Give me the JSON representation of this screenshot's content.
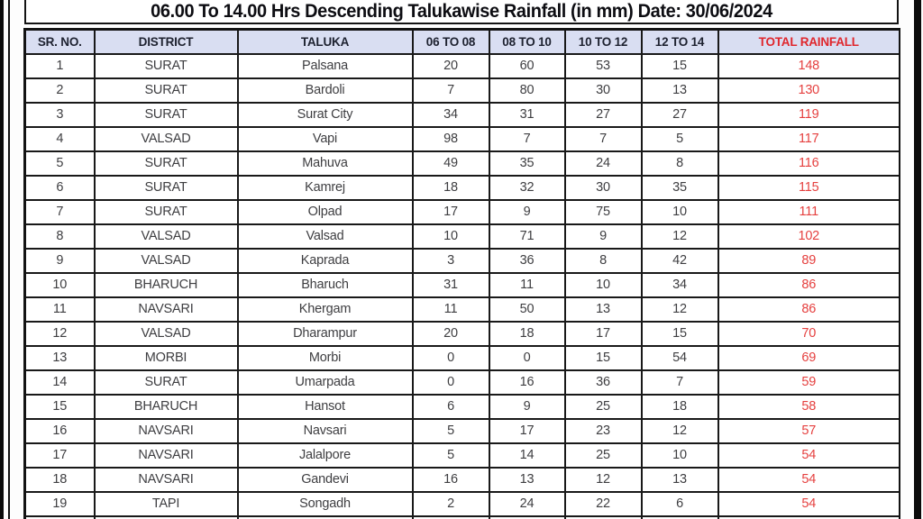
{
  "title": "06.00 To 14.00 Hrs Descending Talukawise Rainfall (in mm) Date: 30/06/2024",
  "table": {
    "columns": [
      "SR. NO.",
      "DISTRICT",
      "TALUKA",
      "06 TO 08",
      "08 TO 10",
      "10 TO 12",
      "12 TO 14",
      "TOTAL RAINFALL"
    ],
    "rows": [
      {
        "sr": "1",
        "district": "SURAT",
        "taluka": "Palsana",
        "h06_08": "20",
        "h08_10": "60",
        "h10_12": "53",
        "h12_14": "15",
        "total": "148"
      },
      {
        "sr": "2",
        "district": "SURAT",
        "taluka": "Bardoli",
        "h06_08": "7",
        "h08_10": "80",
        "h10_12": "30",
        "h12_14": "13",
        "total": "130"
      },
      {
        "sr": "3",
        "district": "SURAT",
        "taluka": "Surat City",
        "h06_08": "34",
        "h08_10": "31",
        "h10_12": "27",
        "h12_14": "27",
        "total": "119"
      },
      {
        "sr": "4",
        "district": "VALSAD",
        "taluka": "Vapi",
        "h06_08": "98",
        "h08_10": "7",
        "h10_12": "7",
        "h12_14": "5",
        "total": "117"
      },
      {
        "sr": "5",
        "district": "SURAT",
        "taluka": "Mahuva",
        "h06_08": "49",
        "h08_10": "35",
        "h10_12": "24",
        "h12_14": "8",
        "total": "116"
      },
      {
        "sr": "6",
        "district": "SURAT",
        "taluka": "Kamrej",
        "h06_08": "18",
        "h08_10": "32",
        "h10_12": "30",
        "h12_14": "35",
        "total": "115"
      },
      {
        "sr": "7",
        "district": "SURAT",
        "taluka": "Olpad",
        "h06_08": "17",
        "h08_10": "9",
        "h10_12": "75",
        "h12_14": "10",
        "total": "111"
      },
      {
        "sr": "8",
        "district": "VALSAD",
        "taluka": "Valsad",
        "h06_08": "10",
        "h08_10": "71",
        "h10_12": "9",
        "h12_14": "12",
        "total": "102"
      },
      {
        "sr": "9",
        "district": "VALSAD",
        "taluka": "Kaprada",
        "h06_08": "3",
        "h08_10": "36",
        "h10_12": "8",
        "h12_14": "42",
        "total": "89"
      },
      {
        "sr": "10",
        "district": "BHARUCH",
        "taluka": "Bharuch",
        "h06_08": "31",
        "h08_10": "11",
        "h10_12": "10",
        "h12_14": "34",
        "total": "86"
      },
      {
        "sr": "11",
        "district": "NAVSARI",
        "taluka": "Khergam",
        "h06_08": "11",
        "h08_10": "50",
        "h10_12": "13",
        "h12_14": "12",
        "total": "86"
      },
      {
        "sr": "12",
        "district": "VALSAD",
        "taluka": "Dharampur",
        "h06_08": "20",
        "h08_10": "18",
        "h10_12": "17",
        "h12_14": "15",
        "total": "70"
      },
      {
        "sr": "13",
        "district": "MORBI",
        "taluka": "Morbi",
        "h06_08": "0",
        "h08_10": "0",
        "h10_12": "15",
        "h12_14": "54",
        "total": "69"
      },
      {
        "sr": "14",
        "district": "SURAT",
        "taluka": "Umarpada",
        "h06_08": "0",
        "h08_10": "16",
        "h10_12": "36",
        "h12_14": "7",
        "total": "59"
      },
      {
        "sr": "15",
        "district": "BHARUCH",
        "taluka": "Hansot",
        "h06_08": "6",
        "h08_10": "9",
        "h10_12": "25",
        "h12_14": "18",
        "total": "58"
      },
      {
        "sr": "16",
        "district": "NAVSARI",
        "taluka": "Navsari",
        "h06_08": "5",
        "h08_10": "17",
        "h10_12": "23",
        "h12_14": "12",
        "total": "57"
      },
      {
        "sr": "17",
        "district": "NAVSARI",
        "taluka": "Jalalpore",
        "h06_08": "5",
        "h08_10": "14",
        "h10_12": "25",
        "h12_14": "10",
        "total": "54"
      },
      {
        "sr": "18",
        "district": "NAVSARI",
        "taluka": "Gandevi",
        "h06_08": "16",
        "h08_10": "13",
        "h10_12": "12",
        "h12_14": "13",
        "total": "54"
      },
      {
        "sr": "19",
        "district": "TAPI",
        "taluka": "Songadh",
        "h06_08": "2",
        "h08_10": "24",
        "h10_12": "22",
        "h12_14": "6",
        "total": "54"
      }
    ]
  },
  "colors": {
    "header_bg": "#d9def2",
    "header_text": "#1e2230",
    "header_red": "#e0262c",
    "value_red": "#e5403f",
    "body_text": "#3e3e41",
    "border": "#191919",
    "title_text": "#0d0d12"
  }
}
